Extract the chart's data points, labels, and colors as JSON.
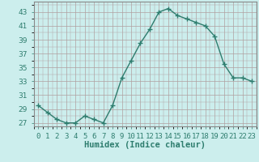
{
  "x": [
    0,
    1,
    2,
    3,
    4,
    5,
    6,
    7,
    8,
    9,
    10,
    11,
    12,
    13,
    14,
    15,
    16,
    17,
    18,
    19,
    20,
    21,
    22,
    23
  ],
  "y": [
    29.5,
    28.5,
    27.5,
    27.0,
    27.0,
    28.0,
    27.5,
    27.0,
    29.5,
    33.5,
    36.0,
    38.5,
    40.5,
    43.0,
    43.5,
    42.5,
    42.0,
    41.5,
    41.0,
    39.5,
    35.5,
    33.5,
    33.5,
    33.0
  ],
  "line_color": "#2e7d6e",
  "marker": "+",
  "marker_size": 4,
  "bg_color": "#cceeed",
  "grid_color": "#b0a0a0",
  "xlabel": "Humidex (Indice chaleur)",
  "ylim": [
    26.5,
    44.5
  ],
  "yticks": [
    27,
    29,
    31,
    33,
    35,
    37,
    39,
    41,
    43
  ],
  "xtick_labels": [
    "0",
    "1",
    "2",
    "3",
    "4",
    "5",
    "6",
    "7",
    "8",
    "9",
    "10",
    "11",
    "12",
    "13",
    "14",
    "15",
    "16",
    "17",
    "18",
    "19",
    "20",
    "21",
    "22",
    "23"
  ],
  "label_fontsize": 7.5,
  "tick_fontsize": 6.5,
  "linewidth": 1.0
}
